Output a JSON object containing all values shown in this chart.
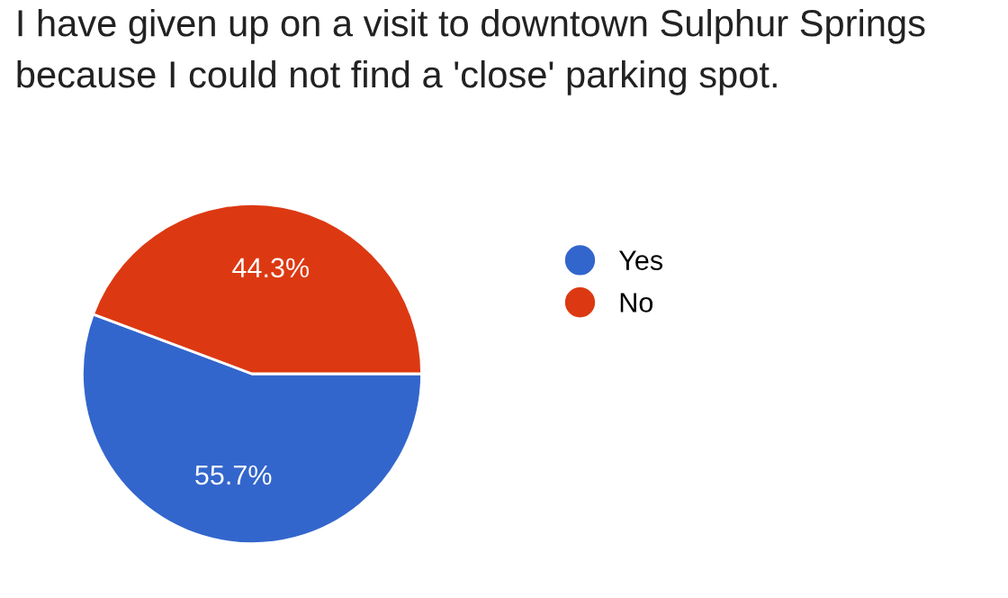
{
  "chart_data": {
    "type": "pie",
    "title": "I have given up on a visit to downtown Sulphur Springs because I could not find a 'close' parking spot.",
    "categories": [
      "Yes",
      "No"
    ],
    "values": [
      55.7,
      44.3
    ],
    "colors": [
      "#3366cc",
      "#dc3912"
    ],
    "value_labels": [
      "55.7%",
      "44.3%"
    ],
    "legend": "right"
  }
}
